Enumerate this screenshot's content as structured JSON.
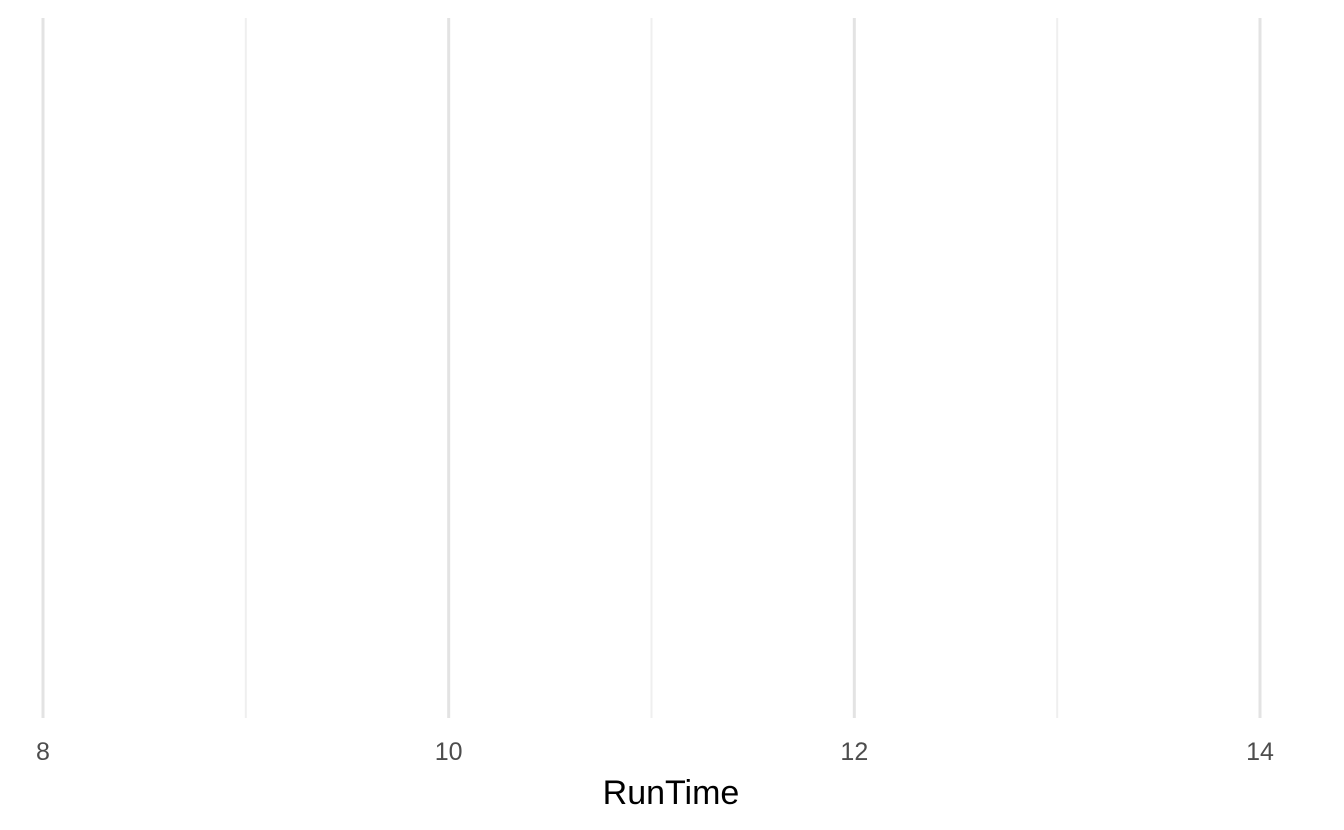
{
  "chart_data": {
    "type": "scatter",
    "title": "",
    "xlabel": "RunTime",
    "ylabel": "",
    "xlim": [
      8,
      14
    ],
    "major_ticks": [
      8,
      10,
      12,
      14
    ],
    "tick_labels": [
      "8",
      "10",
      "12",
      "14"
    ],
    "minor_ticks": [
      9,
      11,
      13
    ],
    "grid": "vertical",
    "series": [],
    "colors": {
      "major_grid": "#e3e3e3",
      "minor_grid": "#efefef",
      "tick_text": "#4d4d4d",
      "axis_title": "#000000"
    }
  }
}
